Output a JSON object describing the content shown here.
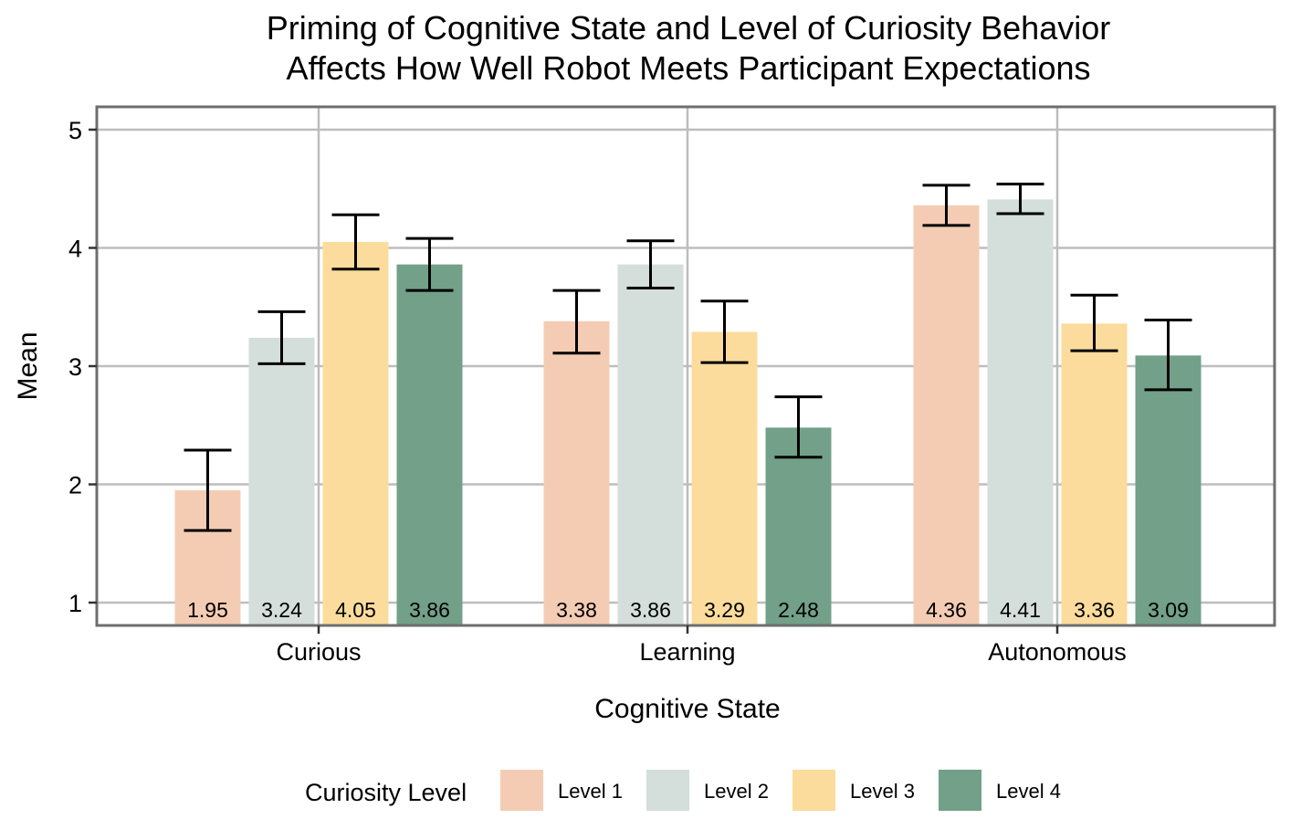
{
  "chart_data": {
    "type": "bar",
    "title": [
      "Priming of Cognitive State and Level of Curiosity Behavior",
      "Affects How Well Robot Meets Participant Expectations"
    ],
    "xlabel": "Cognitive State",
    "ylabel": "Mean",
    "ylim": [
      0.8,
      5.2
    ],
    "yticks": [
      1,
      2,
      3,
      4,
      5
    ],
    "ytick_labels": [
      "1",
      "2",
      "3",
      "4",
      "5"
    ],
    "grid": true,
    "categories": [
      "Curious",
      "Learning",
      "Autonomous"
    ],
    "legend": {
      "title": "Curiosity Level",
      "position": "bottom"
    },
    "series": [
      {
        "name": "Level 1",
        "color": "#f4ccb4",
        "values": [
          1.95,
          3.38,
          4.36
        ],
        "labels": [
          "1.95",
          "3.38",
          "4.36"
        ],
        "err_low": [
          1.61,
          3.11,
          4.19
        ],
        "err_high": [
          2.29,
          3.64,
          4.53
        ]
      },
      {
        "name": "Level 2",
        "color": "#d4dedb",
        "values": [
          3.24,
          3.86,
          4.41
        ],
        "labels": [
          "3.24",
          "3.86",
          "4.41"
        ],
        "err_low": [
          3.02,
          3.66,
          4.29
        ],
        "err_high": [
          3.46,
          4.06,
          4.54
        ]
      },
      {
        "name": "Level 3",
        "color": "#fcdc9c",
        "values": [
          4.05,
          3.29,
          3.36
        ],
        "labels": [
          "4.05",
          "3.29",
          "3.36"
        ],
        "err_low": [
          3.82,
          3.03,
          3.13
        ],
        "err_high": [
          4.28,
          3.55,
          3.6
        ]
      },
      {
        "name": "Level 4",
        "color": "#72a088",
        "values": [
          3.86,
          2.48,
          3.09
        ],
        "labels": [
          "3.86",
          "2.48",
          "3.09"
        ],
        "err_low": [
          3.64,
          2.23,
          2.8
        ],
        "err_high": [
          4.08,
          2.74,
          3.39
        ]
      }
    ]
  }
}
